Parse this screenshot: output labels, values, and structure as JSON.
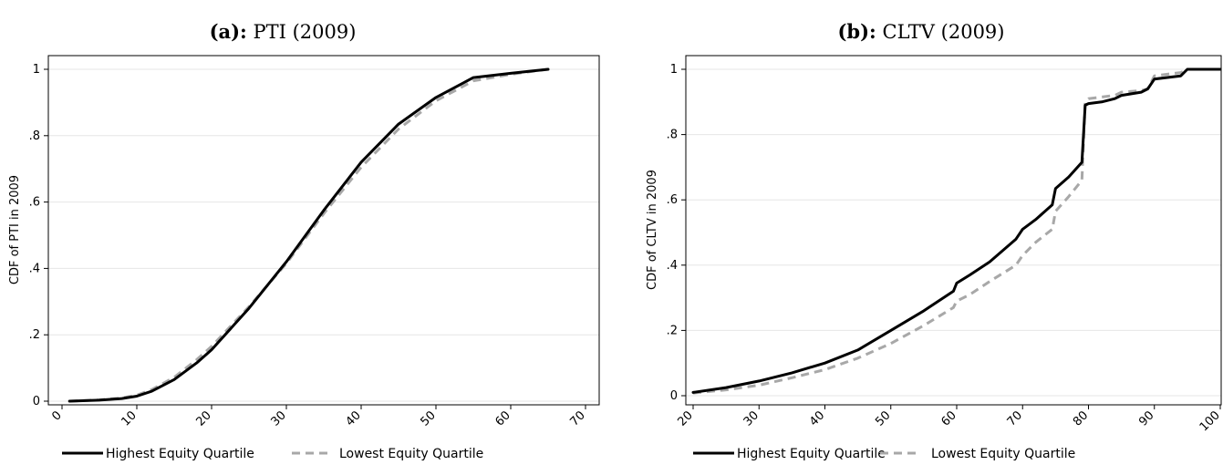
{
  "chart_data": [
    {
      "type": "line",
      "title_prefix": "(a):",
      "title_text": "PTI (2009)",
      "xlabel": "",
      "ylabel": "CDF of PTI in 2009",
      "xlim": [
        0,
        70
      ],
      "ylim": [
        0,
        1
      ],
      "xticks": [
        "0",
        "10",
        "20",
        "30",
        "40",
        "50",
        "60",
        "70"
      ],
      "yticks": [
        "0",
        ".2",
        ".4",
        ".6",
        ".8",
        "1"
      ],
      "xtick_values": [
        0,
        10,
        20,
        30,
        40,
        50,
        60,
        70
      ],
      "ytick_values": [
        0,
        0.2,
        0.4,
        0.6,
        0.8,
        1
      ],
      "grid": true,
      "legend_position": "bottom",
      "series": [
        {
          "name": "Highest Equity Quartile",
          "color": "#000000",
          "style": "solid",
          "x": [
            1,
            5,
            8,
            10,
            12,
            15,
            18,
            20,
            25,
            30,
            35,
            40,
            45,
            50,
            55,
            60,
            65
          ],
          "y": [
            0.0,
            0.003,
            0.008,
            0.015,
            0.03,
            0.065,
            0.115,
            0.155,
            0.28,
            0.42,
            0.575,
            0.72,
            0.835,
            0.915,
            0.975,
            0.988,
            1.0
          ]
        },
        {
          "name": "Lowest Equity Quartile",
          "color": "#a8a8a8",
          "style": "dashed",
          "x": [
            1,
            5,
            8,
            10,
            12,
            15,
            18,
            20,
            25,
            30,
            35,
            40,
            45,
            50,
            55,
            60,
            65
          ],
          "y": [
            0.0,
            0.004,
            0.01,
            0.018,
            0.035,
            0.072,
            0.125,
            0.165,
            0.285,
            0.415,
            0.565,
            0.705,
            0.82,
            0.905,
            0.965,
            0.985,
            1.0
          ]
        }
      ]
    },
    {
      "type": "line",
      "title_prefix": "(b):",
      "title_text": "CLTV (2009)",
      "xlabel": "",
      "ylabel": "CDF of CLTV in 2009",
      "xlim": [
        20,
        100
      ],
      "ylim": [
        0,
        1
      ],
      "xticks": [
        "20",
        "30",
        "40",
        "50",
        "60",
        "70",
        "80",
        "90",
        "100"
      ],
      "yticks": [
        "0",
        ".2",
        ".4",
        ".6",
        ".8",
        "1"
      ],
      "xtick_values": [
        20,
        30,
        40,
        50,
        60,
        70,
        80,
        90,
        100
      ],
      "ytick_values": [
        0,
        0.2,
        0.4,
        0.6,
        0.8,
        1
      ],
      "grid": true,
      "legend_position": "bottom",
      "series": [
        {
          "name": "Highest Equity Quartile",
          "color": "#000000",
          "style": "solid",
          "x": [
            20,
            25,
            30,
            35,
            40,
            45,
            50,
            55,
            59.5,
            60,
            62,
            65,
            69,
            70,
            72,
            74.5,
            75,
            77,
            79,
            79.5,
            80,
            82,
            84,
            85,
            88,
            89,
            90,
            94,
            95,
            100
          ],
          "y": [
            0.01,
            0.025,
            0.045,
            0.07,
            0.1,
            0.14,
            0.2,
            0.26,
            0.32,
            0.345,
            0.37,
            0.41,
            0.48,
            0.51,
            0.54,
            0.585,
            0.635,
            0.67,
            0.715,
            0.89,
            0.895,
            0.9,
            0.91,
            0.92,
            0.93,
            0.94,
            0.97,
            0.98,
            1.0,
            1.0
          ]
        },
        {
          "name": "Lowest Equity Quartile",
          "color": "#a8a8a8",
          "style": "dashed",
          "x": [
            20,
            25,
            30,
            35,
            40,
            45,
            50,
            55,
            59.5,
            60,
            62,
            65,
            69,
            70,
            72,
            74.5,
            75,
            77,
            79,
            79.5,
            80,
            82,
            84,
            85,
            88,
            89,
            90,
            94,
            95,
            100
          ],
          "y": [
            0.008,
            0.018,
            0.032,
            0.055,
            0.08,
            0.115,
            0.16,
            0.215,
            0.27,
            0.29,
            0.31,
            0.35,
            0.4,
            0.43,
            0.47,
            0.51,
            0.565,
            0.61,
            0.66,
            0.9,
            0.91,
            0.915,
            0.92,
            0.93,
            0.935,
            0.94,
            0.98,
            0.99,
            1.0,
            1.0
          ]
        }
      ]
    }
  ]
}
